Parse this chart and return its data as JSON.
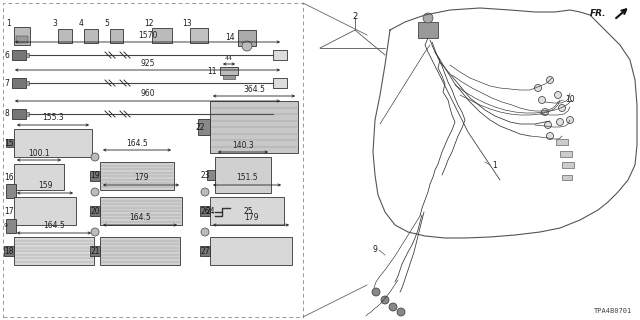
{
  "bg": "#ffffff",
  "tc": "#1a1a1a",
  "diagram_id": "TPA4B0701",
  "figw": 6.4,
  "figh": 3.2,
  "dpi": 100
}
